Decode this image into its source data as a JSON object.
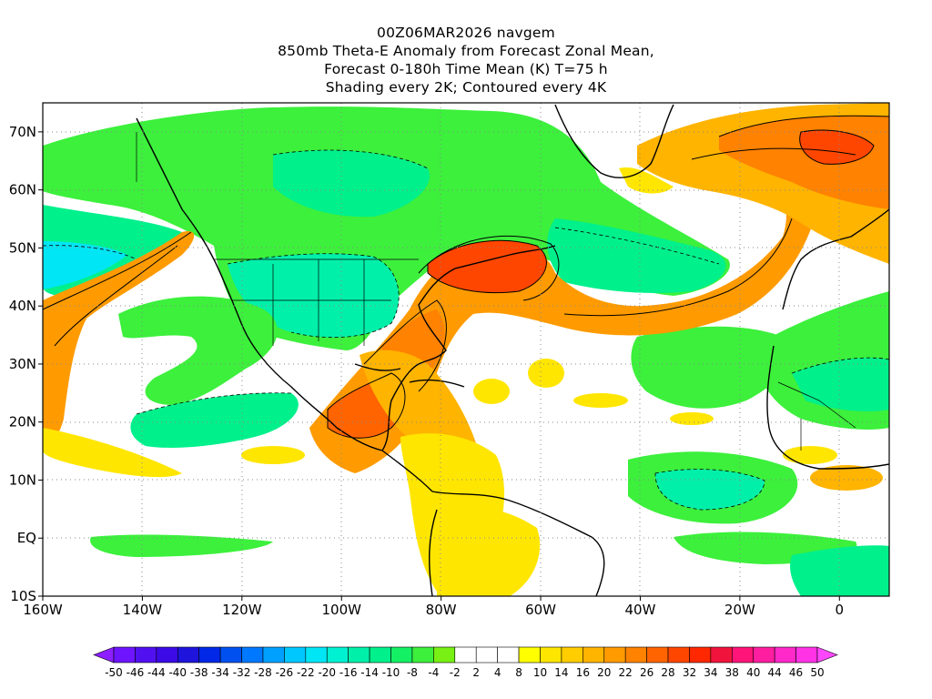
{
  "title": {
    "line1": "00Z06MAR2026 navgem",
    "line2": "850mb Theta-E Anomaly from Forecast Zonal Mean,",
    "line3": "Forecast 0-180h Time Mean (K) T=75 h",
    "line4": "Shading every 2K; Contoured every 4K"
  },
  "map": {
    "lon_range": [
      -160,
      10
    ],
    "lat_range": [
      -10,
      75
    ],
    "lon_ticks": [
      {
        "value": -160,
        "label": "160W"
      },
      {
        "value": -140,
        "label": "140W"
      },
      {
        "value": -120,
        "label": "120W"
      },
      {
        "value": -100,
        "label": "100W"
      },
      {
        "value": -80,
        "label": "80W"
      },
      {
        "value": -60,
        "label": "60W"
      },
      {
        "value": -40,
        "label": "40W"
      },
      {
        "value": -20,
        "label": "20W"
      },
      {
        "value": 0,
        "label": "0"
      }
    ],
    "lat_ticks": [
      {
        "value": 70,
        "label": "70N"
      },
      {
        "value": 60,
        "label": "60N"
      },
      {
        "value": 50,
        "label": "50N"
      },
      {
        "value": 40,
        "label": "40N"
      },
      {
        "value": 30,
        "label": "30N"
      },
      {
        "value": 20,
        "label": "20N"
      },
      {
        "value": 10,
        "label": "10N"
      },
      {
        "value": 0,
        "label": "EQ"
      },
      {
        "value": -10,
        "label": "10S"
      }
    ]
  },
  "colorbar": {
    "labels": [
      "-50",
      "-46",
      "-44",
      "-40",
      "-38",
      "-34",
      "-32",
      "-28",
      "-26",
      "-22",
      "-20",
      "-16",
      "-14",
      "-10",
      "-8",
      "-4",
      "-2",
      "2",
      "4",
      "8",
      "10",
      "14",
      "16",
      "20",
      "22",
      "26",
      "28",
      "32",
      "34",
      "38",
      "40",
      "44",
      "46",
      "50"
    ],
    "colors": [
      "#8c1eff",
      "#6e14ff",
      "#5010f0",
      "#3c0ae6",
      "#1e14dc",
      "#0028e6",
      "#0050f0",
      "#0078ff",
      "#00a0ff",
      "#00c8ff",
      "#00e6f5",
      "#00f0d2",
      "#00f0aa",
      "#00f08c",
      "#14f064",
      "#3cf03c",
      "#78f014",
      "#ffffff",
      "#ffffff",
      "#ffffff",
      "#ffff00",
      "#ffe600",
      "#ffcd00",
      "#ffb400",
      "#ff9b00",
      "#ff8200",
      "#ff6400",
      "#ff4600",
      "#ff2800",
      "#f0143c",
      "#ff1478",
      "#ff1ea0",
      "#ff28c8",
      "#ff32e6",
      "#ff46ff"
    ]
  },
  "colors": {
    "cool": "#3cf03c",
    "cool_deep": "#00f0aa",
    "warm": "#ffe600",
    "warm_mid": "#ffb400",
    "warm_deep": "#ff6400",
    "hot": "#ff2800"
  }
}
